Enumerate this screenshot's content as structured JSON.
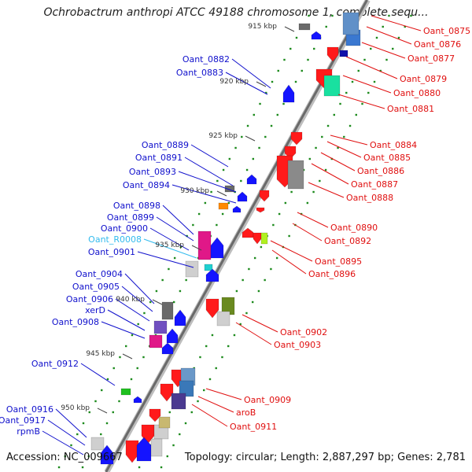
{
  "title": "Ochrobactrum anthropi ATCC 49188 chromosome 1, complete sequ...",
  "footer": {
    "accession": "Accession: NC_009667",
    "summary": "Topology: circular; Length: 2,887,297 bp; Genes: 2,781"
  },
  "colors": {
    "backbone": "#9a9a9a",
    "left_labels": "#1010cc",
    "rna_label": "#33bbee",
    "right_labels": "#e01010",
    "dots": "#1c8a1c"
  },
  "ticks": [
    "915 kbp",
    "920 kbp",
    "925 kbp",
    "930 kbp",
    "935 kbp",
    "940 kbp",
    "945 kbp",
    "950 kbp"
  ],
  "left_genes": [
    "Oant_0882",
    "Oant_0883",
    "Oant_0889",
    "Oant_0891",
    "Oant_0893",
    "Oant_0894",
    "Oant_0898",
    "Oant_0899",
    "Oant_0900",
    "Oant_R0008",
    "Oant_0901",
    "Oant_0904",
    "Oant_0905",
    "Oant_0906",
    "xerD",
    "Oant_0908",
    "Oant_0912",
    "Oant_0916",
    "Oant_0917",
    "rpmB"
  ],
  "right_genes": [
    "Oant_0875",
    "Oant_0876",
    "Oant_0877",
    "Oant_0879",
    "Oant_0880",
    "Oant_0881",
    "Oant_0884",
    "Oant_0885",
    "Oant_0886",
    "Oant_0887",
    "Oant_0888",
    "Oant_0890",
    "Oant_0892",
    "Oant_0895",
    "Oant_0896",
    "Oant_0902",
    "Oant_0903",
    "Oant_0909",
    "aroB",
    "Oant_0911"
  ]
}
